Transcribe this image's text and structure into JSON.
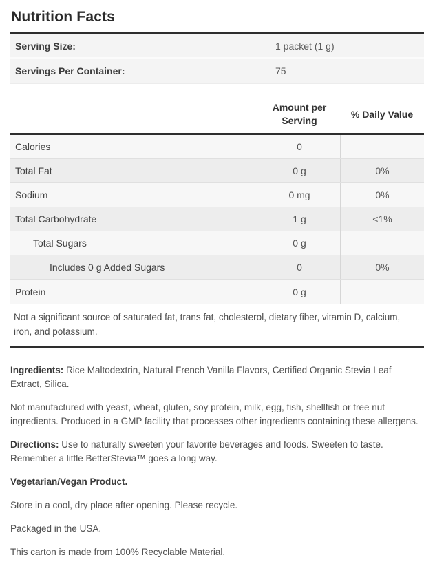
{
  "title": "Nutrition Facts",
  "serving_info": {
    "rows": [
      {
        "label": "Serving Size:",
        "value": "1 packet (1 g)"
      },
      {
        "label": "Servings Per Container:",
        "value": "75"
      }
    ]
  },
  "nutrition_table": {
    "headers": {
      "amount": "Amount per Serving",
      "daily_value": "% Daily Value"
    },
    "rows": [
      {
        "label": "Calories",
        "amount": "0",
        "daily_value": "",
        "indent": 0
      },
      {
        "label": "Total Fat",
        "amount": "0 g",
        "daily_value": "0%",
        "indent": 0
      },
      {
        "label": "Sodium",
        "amount": "0 mg",
        "daily_value": "0%",
        "indent": 0
      },
      {
        "label": "Total Carbohydrate",
        "amount": "1 g",
        "daily_value": "<1%",
        "indent": 0
      },
      {
        "label": "Total Sugars",
        "amount": "0 g",
        "daily_value": "",
        "indent": 1
      },
      {
        "label": "Includes 0 g Added Sugars",
        "amount": "0",
        "daily_value": "0%",
        "indent": 2
      },
      {
        "label": "Protein",
        "amount": "0 g",
        "daily_value": "",
        "indent": 0
      }
    ],
    "footnote": "Not a significant source of saturated fat, trans fat, cholesterol, dietary fiber, vitamin D, calcium, iron, and potassium."
  },
  "paragraphs": [
    {
      "label": "Ingredients:",
      "text": " Rice Maltodextrin, Natural French Vanilla Flavors, Certified Organic Stevia Leaf Extract, Silica."
    },
    {
      "label": "",
      "text": "Not manufactured with yeast, wheat, gluten, soy protein, milk, egg, fish, shellfish or tree nut ingredients. Produced in a GMP facility that processes other ingredients containing these allergens."
    },
    {
      "label": "Directions:",
      "text": " Use to naturally sweeten your favorite beverages and foods. Sweeten to taste. Remember a little BetterStevia™ goes a long way."
    },
    {
      "label": "Vegetarian/Vegan Product.",
      "text": ""
    },
    {
      "label": "",
      "text": "Store in a cool, dry place after opening. Please recycle."
    },
    {
      "label": "",
      "text": "Packaged in the USA."
    },
    {
      "label": "",
      "text": "This carton is made from 100% Recyclable Material."
    }
  ],
  "colors": {
    "rule_dark": "#2e2e2e",
    "row_light": "#f7f7f7",
    "row_shaded": "#ededed",
    "serving_row_bg": "#f4f4f4",
    "column_divider": "#d6d6d6",
    "text_primary": "#3d3d3d",
    "text_secondary": "#555555"
  }
}
